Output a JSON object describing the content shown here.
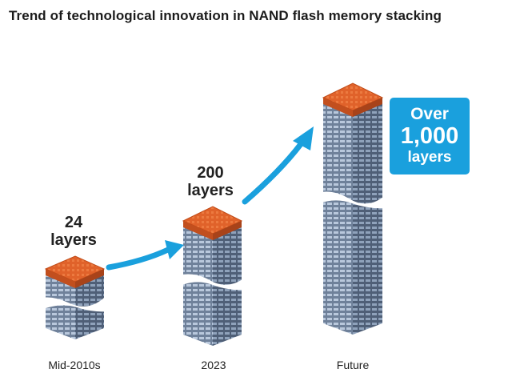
{
  "title": "Trend of technological innovation in NAND flash memory stacking",
  "icons": [
    "building-stack-icon",
    "arrow-up-right-icon"
  ],
  "colors": {
    "roof": "#e0622a",
    "building_front": "#7d8ea5",
    "building_side": "#5b6b82",
    "window_light": "#c8d6e8",
    "accent": "#1aa0dd",
    "callout_bg": "#1aa0dd"
  },
  "stages": [
    {
      "period": "Mid-2010s",
      "layers_number": "24",
      "layers_word": "layers"
    },
    {
      "period": "2023",
      "layers_number": "200",
      "layers_word": "layers"
    },
    {
      "period": "Future",
      "callout_line1": "Over",
      "callout_line2": "1,000",
      "callout_line3": "layers"
    }
  ]
}
